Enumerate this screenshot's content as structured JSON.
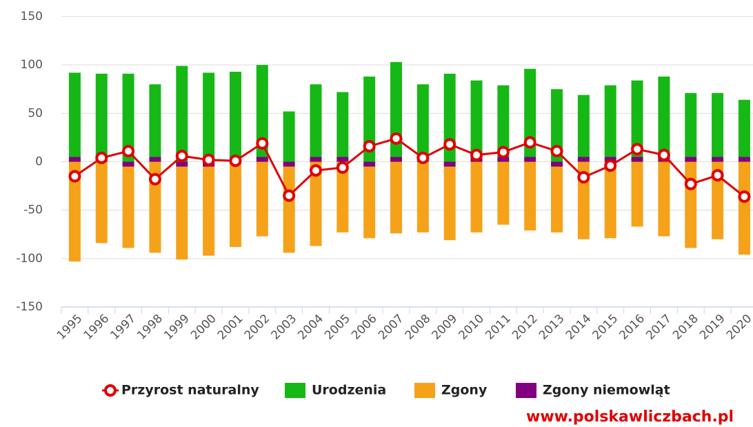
{
  "chart_data": {
    "type": "bar",
    "stacked": true,
    "categories": [
      "1995",
      "1996",
      "1997",
      "1998",
      "1999",
      "2000",
      "2001",
      "2002",
      "2003",
      "2004",
      "2005",
      "2006",
      "2007",
      "2008",
      "2009",
      "2010",
      "2011",
      "2012",
      "2013",
      "2014",
      "2015",
      "2016",
      "2017",
      "2018",
      "2019",
      "2020"
    ],
    "series": [
      {
        "name": "Przyrost naturalny",
        "type": "line",
        "color": "#e00000",
        "values": [
          -15,
          4,
          11,
          -18,
          6,
          2,
          1,
          19,
          -35,
          -9,
          -6,
          16,
          24,
          4,
          18,
          7,
          10,
          20,
          11,
          -16,
          -4,
          13,
          7,
          -23,
          -14,
          -36
        ]
      },
      {
        "name": "Urodzenia",
        "type": "bar",
        "color": "#16b816",
        "values": [
          87,
          86,
          91,
          75,
          99,
          92,
          88,
          95,
          52,
          75,
          67,
          88,
          98,
          75,
          91,
          79,
          74,
          91,
          75,
          64,
          74,
          79,
          83,
          66,
          66,
          59
        ]
      },
      {
        "name": "Zgony",
        "type": "bar",
        "color": "#f5a21a",
        "values": [
          -103,
          -84,
          -84,
          -94,
          -96,
          -92,
          -88,
          -77,
          -89,
          -87,
          -73,
          -74,
          -74,
          -73,
          -76,
          -73,
          -65,
          -71,
          -68,
          -80,
          -79,
          -67,
          -77,
          -89,
          -80,
          -96
        ]
      },
      {
        "name": "Zgony niemowląt",
        "type": "bar",
        "color": "#800080",
        "values": [
          5,
          5,
          -5,
          5,
          -5,
          -5,
          5,
          5,
          -5,
          5,
          5,
          -5,
          5,
          5,
          -5,
          5,
          5,
          5,
          -5,
          5,
          5,
          5,
          5,
          5,
          5,
          5
        ]
      }
    ],
    "ylim": [
      -150,
      150
    ],
    "yticks": [
      -150,
      -100,
      -50,
      0,
      50,
      100,
      150
    ],
    "grid": true,
    "watermark": "www.polskawliczbach.pl"
  }
}
